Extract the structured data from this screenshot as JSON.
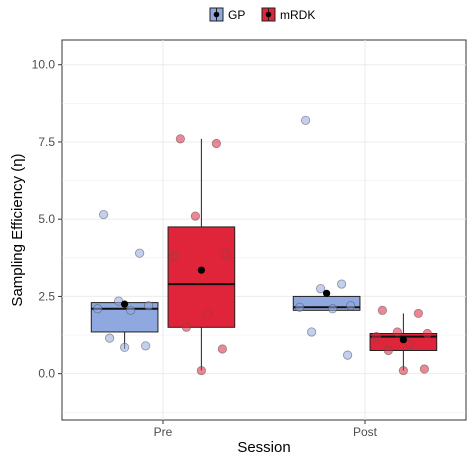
{
  "chart_data": {
    "type": "box",
    "xlabel": "Session",
    "ylabel": "Sampling Efficiency (η)",
    "categories": [
      "Pre",
      "Post"
    ],
    "ylim": [
      -1.5,
      10.8
    ],
    "yticks": [
      0.0,
      2.5,
      5.0,
      7.5,
      10.0
    ],
    "ytick_labels": [
      "0.0",
      "2.5",
      "5.0",
      "7.5",
      "10.0"
    ],
    "grid": true,
    "legend_position": "top",
    "series": [
      {
        "name": "GP",
        "color": "#8fa8e0",
        "boxes": [
          {
            "category": "Pre",
            "q1": 1.35,
            "median": 2.1,
            "q3": 2.3,
            "whisker_low": 0.8,
            "whisker_high": 2.3,
            "mean": 2.25,
            "points": [
              5.15,
              3.9,
              2.35,
              2.2,
              2.1,
              2.05,
              1.15,
              0.9,
              0.85
            ]
          },
          {
            "category": "Post",
            "q1": 2.05,
            "median": 2.15,
            "q3": 2.5,
            "whisker_low": 2.05,
            "whisker_high": 2.5,
            "mean": 2.6,
            "points": [
              8.2,
              2.9,
              2.75,
              2.2,
              2.15,
              2.1,
              1.35,
              0.6
            ]
          }
        ]
      },
      {
        "name": "mRDK",
        "color": "#e0253a",
        "boxes": [
          {
            "category": "Pre",
            "q1": 1.5,
            "median": 2.9,
            "q3": 4.75,
            "whisker_low": 0.1,
            "whisker_high": 7.6,
            "mean": 3.35,
            "points": [
              7.6,
              7.45,
              5.1,
              3.85,
              3.8,
              1.95,
              1.5,
              0.8,
              0.1
            ]
          },
          {
            "category": "Post",
            "q1": 0.75,
            "median": 1.2,
            "q3": 1.3,
            "whisker_low": 0.1,
            "whisker_high": 1.95,
            "mean": 1.1,
            "points": [
              2.05,
              1.95,
              1.35,
              1.3,
              1.2,
              0.95,
              0.75,
              0.15,
              0.1
            ]
          }
        ]
      }
    ]
  }
}
